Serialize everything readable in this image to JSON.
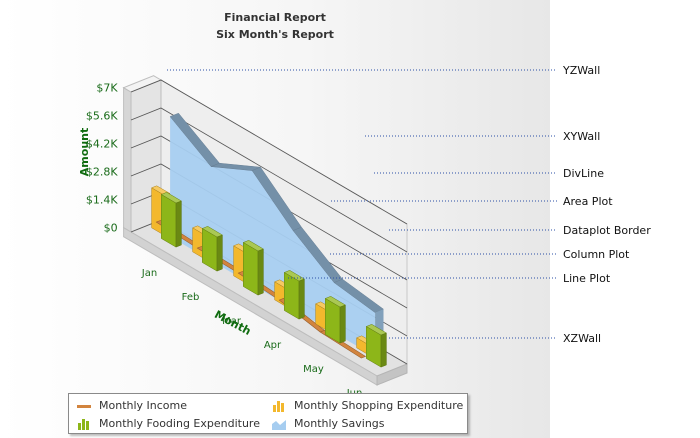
{
  "chart_data": {
    "type": "combination-3d",
    "title": "Financial Report",
    "subtitle": "Six Month's Report",
    "ylabel": "Amount",
    "xlabel": "Month",
    "categories": [
      "Jan",
      "Feb",
      "Mar",
      "Apr",
      "May",
      "Jun"
    ],
    "y_ticks": [
      "$0",
      "$1.4K",
      "$2.8K",
      "$4.2K",
      "$5.6K",
      "$7K"
    ],
    "ylim": [
      0,
      7000
    ],
    "series": [
      {
        "name": "Monthly Income",
        "render": "line",
        "color": "#d2843e",
        "values": [
          1000,
          900,
          850,
          700,
          300,
          200
        ]
      },
      {
        "name": "Monthly Shopping Expenditure",
        "render": "column",
        "color": "#f3b82d",
        "values": [
          2000,
          1200,
          1500,
          900,
          1000,
          500
        ]
      },
      {
        "name": "Monthly Fooding Expenditure",
        "render": "column",
        "color": "#8db619",
        "values": [
          2200,
          1700,
          2200,
          1900,
          1800,
          1600
        ]
      },
      {
        "name": "Monthly Savings",
        "render": "area",
        "color": "#a6cdf0",
        "values": [
          6000,
          4700,
          5700,
          3900,
          2500,
          2200
        ]
      }
    ],
    "legend_position": "bottom",
    "annotations": [
      "YZWall",
      "XYWall",
      "DivLine",
      "Area Plot",
      "Dataplot Border",
      "Column Plot",
      "Line Plot",
      "XZWall"
    ]
  },
  "colors": {
    "wall": "#eeeeee",
    "floor": "#e2e2e2",
    "leader": "#2b4fa6",
    "label": "#1a6b1a"
  }
}
